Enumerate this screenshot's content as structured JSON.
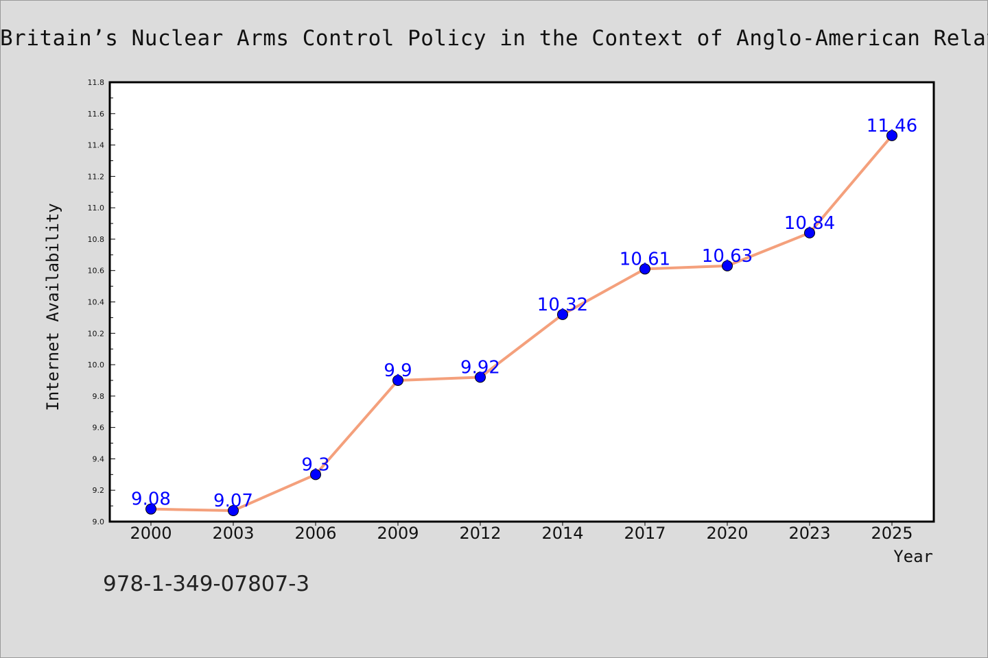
{
  "chart_data": {
    "type": "line",
    "title": "Britain’s Nuclear Arms Control Policy in the Context of Anglo-American Relations",
    "xlabel": "Year",
    "ylabel": "Internet Availability",
    "categories": [
      "2000",
      "2003",
      "2006",
      "2009",
      "2012",
      "2014",
      "2017",
      "2020",
      "2023",
      "2025"
    ],
    "series": [
      {
        "values": [
          9.08,
          9.07,
          9.3,
          9.9,
          9.92,
          10.32,
          10.61,
          10.63,
          10.84,
          11.46
        ]
      }
    ],
    "data_labels": [
      "9.08",
      "9.07",
      "9.3",
      "9.9",
      "9.92",
      "10.32",
      "10.61",
      "10.63",
      "10.84",
      "11.46"
    ],
    "ylim": [
      9.0,
      11.8
    ],
    "yticks": [
      "9.0",
      "9.2",
      "9.4",
      "9.6",
      "9.8",
      "10.0",
      "10.2",
      "10.4",
      "10.6",
      "10.8",
      "11.0",
      "11.2",
      "11.4",
      "11.6",
      "11.8"
    ],
    "grid": false,
    "legend": "none",
    "colors": {
      "line": "#f4a07c",
      "marker": "#0000ff",
      "label": "#0000ff",
      "background": "#dcdcdc",
      "plot_background": "#ffffff"
    }
  },
  "footer": {
    "isbn": "978-1-349-07807-3"
  }
}
